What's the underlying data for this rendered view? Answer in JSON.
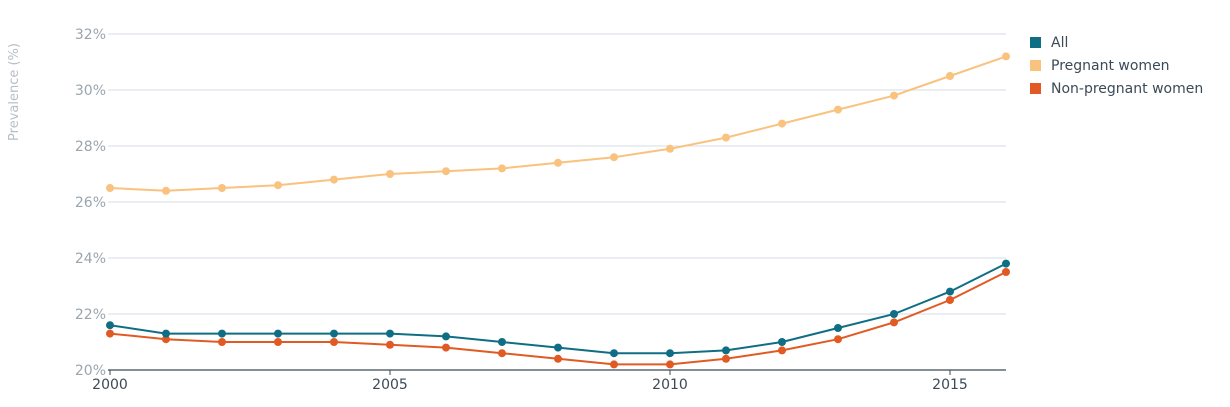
{
  "chart_data": {
    "type": "line",
    "ylabel": "Prevalence (%)",
    "xlim": [
      2000,
      2016
    ],
    "ylim": [
      20,
      32
    ],
    "x_ticks": [
      2000,
      2005,
      2010,
      2015
    ],
    "x_tick_labels": [
      "2000",
      "2005",
      "2010",
      "2015"
    ],
    "y_ticks": [
      20,
      22,
      24,
      26,
      28,
      30,
      32
    ],
    "y_tick_labels": [
      "20%",
      "22%",
      "24%",
      "26%",
      "28%",
      "30%",
      "32%"
    ],
    "grid": "horizontal",
    "legend_position": "top-right",
    "x": [
      2000,
      2001,
      2002,
      2003,
      2004,
      2005,
      2006,
      2007,
      2008,
      2009,
      2010,
      2011,
      2012,
      2013,
      2014,
      2015,
      2016
    ],
    "series": [
      {
        "name": "All",
        "color": "#0f6e84",
        "values": [
          21.6,
          21.3,
          21.3,
          21.3,
          21.3,
          21.3,
          21.2,
          21.0,
          20.8,
          20.6,
          20.6,
          20.7,
          21.0,
          21.5,
          22.0,
          22.8,
          23.8
        ]
      },
      {
        "name": "Pregnant women",
        "color": "#f9c27e",
        "values": [
          26.5,
          26.4,
          26.5,
          26.6,
          26.8,
          27.0,
          27.1,
          27.2,
          27.4,
          27.6,
          27.9,
          28.3,
          28.8,
          29.3,
          29.8,
          30.5,
          31.2
        ]
      },
      {
        "name": "Non-pregnant women",
        "color": "#e15a24",
        "values": [
          21.3,
          21.1,
          21.0,
          21.0,
          21.0,
          20.9,
          20.8,
          20.6,
          20.4,
          20.2,
          20.2,
          20.4,
          20.7,
          21.1,
          21.7,
          22.5,
          23.5
        ]
      }
    ]
  },
  "colors": {
    "grid": "#d5dde5",
    "axis": "#3b4a55"
  }
}
